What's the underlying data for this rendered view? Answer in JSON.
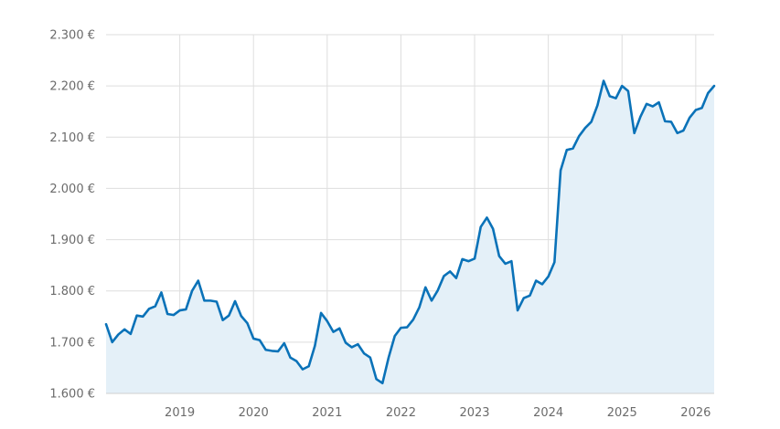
{
  "chart_data": {
    "type": "area",
    "title": "",
    "xlabel": "",
    "ylabel": "",
    "colors": {
      "line": "#0a72b8",
      "fill": "#e4f0f8",
      "grid": "#dedede"
    },
    "grid": true,
    "legend": "none",
    "x_range": [
      "2018-01",
      "2026-04"
    ],
    "ylim": [
      1600,
      2300
    ],
    "y_ticks": [
      {
        "value": 1600,
        "label": "1.600 €"
      },
      {
        "value": 1700,
        "label": "1.700 €"
      },
      {
        "value": 1800,
        "label": "1.800 €"
      },
      {
        "value": 1900,
        "label": "1.900 €"
      },
      {
        "value": 2000,
        "label": "2.000 €"
      },
      {
        "value": 2100,
        "label": "2.100 €"
      },
      {
        "value": 2200,
        "label": "2.200 €"
      },
      {
        "value": 2300,
        "label": "2.300 €"
      }
    ],
    "x_ticks": [
      {
        "value": "2019-01",
        "label": "2019"
      },
      {
        "value": "2020-01",
        "label": "2020"
      },
      {
        "value": "2021-01",
        "label": "2021"
      },
      {
        "value": "2022-01",
        "label": "2022"
      },
      {
        "value": "2023-01",
        "label": "2023"
      },
      {
        "value": "2024-01",
        "label": "2024"
      },
      {
        "value": "2025-01",
        "label": "2025"
      },
      {
        "value": "2026-01",
        "label": "2026"
      }
    ],
    "series": [
      {
        "x": [
          "2018-01",
          "2018-02",
          "2018-03",
          "2018-04",
          "2018-05",
          "2018-06",
          "2018-07",
          "2018-08",
          "2018-09",
          "2018-10",
          "2018-11",
          "2018-12",
          "2019-01",
          "2019-02",
          "2019-03",
          "2019-04",
          "2019-05",
          "2019-06",
          "2019-07",
          "2019-08",
          "2019-09",
          "2019-10",
          "2019-11",
          "2019-12",
          "2020-01",
          "2020-02",
          "2020-03",
          "2020-04",
          "2020-05",
          "2020-06",
          "2020-07",
          "2020-08",
          "2020-09",
          "2020-10",
          "2020-11",
          "2020-12",
          "2021-01",
          "2021-02",
          "2021-03",
          "2021-04",
          "2021-05",
          "2021-06",
          "2021-07",
          "2021-08",
          "2021-09",
          "2021-10",
          "2021-11",
          "2021-12",
          "2022-01",
          "2022-02",
          "2022-03",
          "2022-04",
          "2022-05",
          "2022-06",
          "2022-07",
          "2022-08",
          "2022-09",
          "2022-10",
          "2022-11",
          "2022-12",
          "2023-01",
          "2023-02",
          "2023-03",
          "2023-04",
          "2023-05",
          "2023-06",
          "2023-07",
          "2023-08",
          "2023-09",
          "2023-10",
          "2023-11",
          "2023-12",
          "2024-01",
          "2024-02",
          "2024-03",
          "2024-04",
          "2024-05",
          "2024-06",
          "2024-07",
          "2024-08",
          "2024-09",
          "2024-10",
          "2024-11",
          "2024-12",
          "2025-01",
          "2025-02",
          "2025-03",
          "2025-04",
          "2025-05",
          "2025-06",
          "2025-07",
          "2025-08",
          "2025-09",
          "2025-10",
          "2025-11",
          "2025-12",
          "2026-01",
          "2026-02",
          "2026-03",
          "2026-04"
        ],
        "values": [
          1735,
          1700,
          1715,
          1725,
          1716,
          1752,
          1750,
          1765,
          1770,
          1797,
          1755,
          1753,
          1762,
          1764,
          1800,
          1820,
          1781,
          1781,
          1779,
          1743,
          1752,
          1780,
          1751,
          1737,
          1707,
          1704,
          1685,
          1683,
          1682,
          1698,
          1670,
          1663,
          1647,
          1653,
          1693,
          1757,
          1741,
          1720,
          1727,
          1699,
          1690,
          1696,
          1678,
          1670,
          1628,
          1620,
          1670,
          1712,
          1728,
          1729,
          1744,
          1768,
          1807,
          1781,
          1801,
          1829,
          1838,
          1825,
          1862,
          1858,
          1863,
          1925,
          1943,
          1921,
          1868,
          1853,
          1858,
          1762,
          1786,
          1791,
          1820,
          1813,
          1828,
          1856,
          2035,
          2075,
          2078,
          2102,
          2118,
          2130,
          2162,
          2210,
          2180,
          2176,
          2200,
          2190,
          2108,
          2140,
          2165,
          2160,
          2168,
          2131,
          2130,
          2108,
          2113,
          2138,
          2153,
          2157,
          2186,
          2200
        ]
      }
    ]
  }
}
